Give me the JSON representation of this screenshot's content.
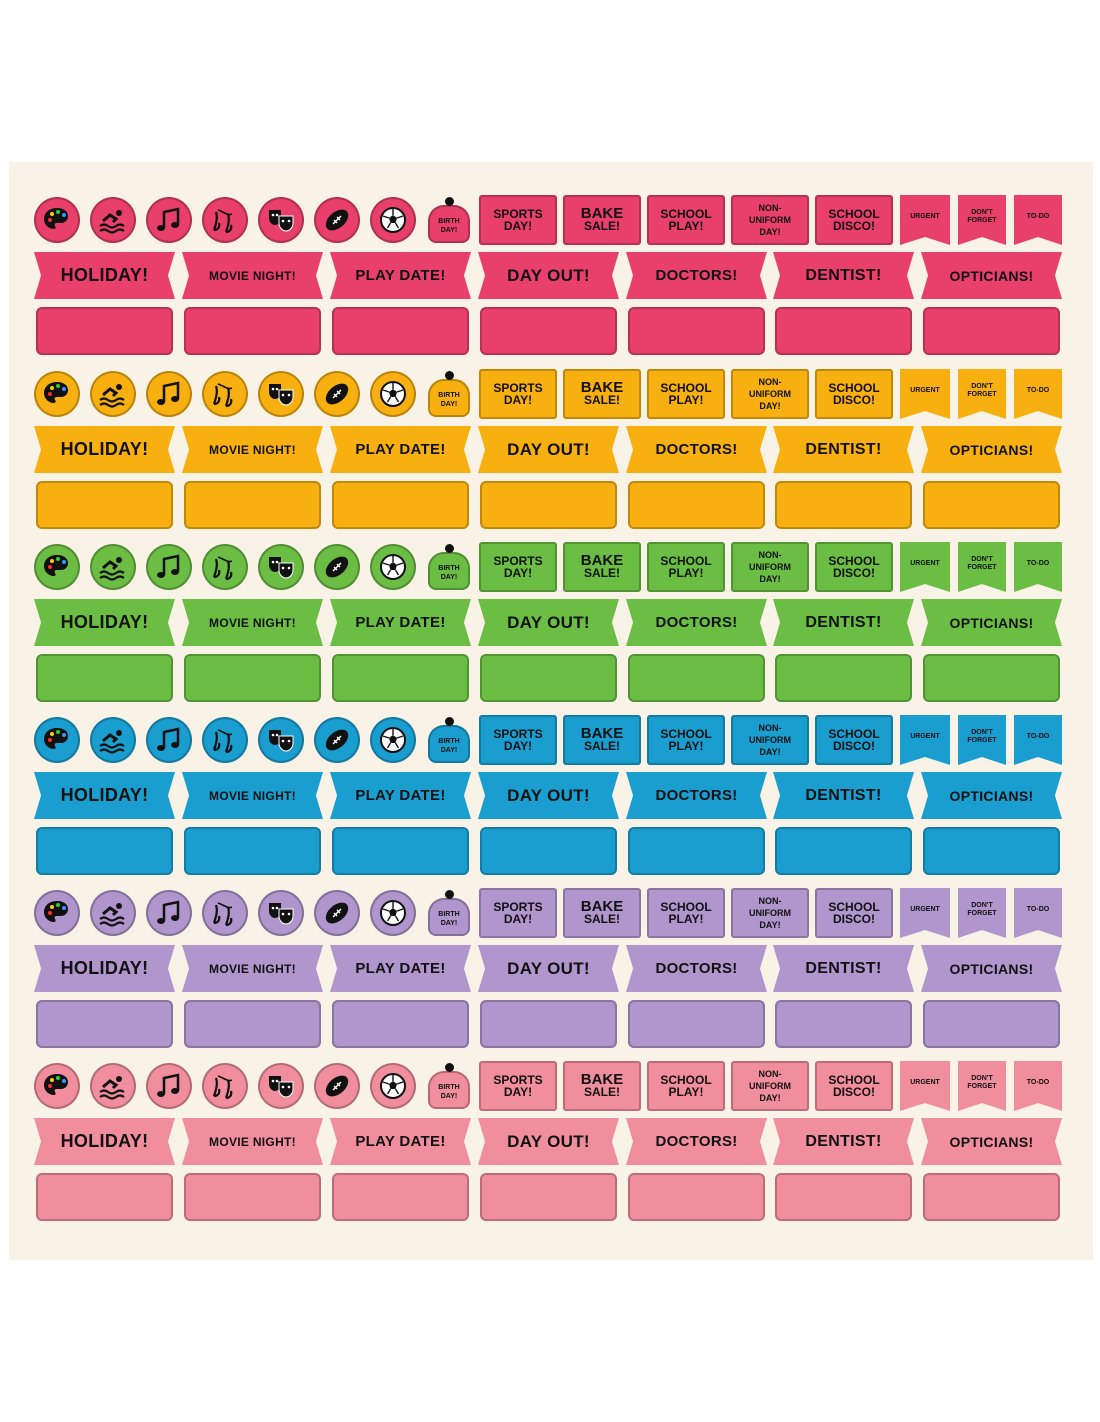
{
  "icons": [
    "palette-icon",
    "swimmer-icon",
    "music-note-icon",
    "ballet-shoes-icon",
    "theatre-masks-icon",
    "football-icon",
    "soccer-ball-icon"
  ],
  "birthday": {
    "line1": "BIRTH",
    "line2": "DAY!"
  },
  "labels": [
    {
      "line1": "SPORTS",
      "line2": "DAY!"
    },
    {
      "line1": "BAKE",
      "line2": "SALE!"
    },
    {
      "line1": "SCHOOL",
      "line2": "PLAY!"
    },
    {
      "line1": "NON-",
      "line2": "UNIFORM",
      "line3": "DAY!"
    },
    {
      "line1": "SCHOOL",
      "line2": "DISCO!"
    }
  ],
  "flags": [
    {
      "line1": "URGENT"
    },
    {
      "line1": "DON'T",
      "line2": "FORGET"
    },
    {
      "line1": "TO-DO"
    }
  ],
  "banners": [
    "HOLIDAY!",
    "MOVIE NIGHT!",
    "PLAY DATE!",
    "DAY OUT!",
    "DOCTORS!",
    "DENTIST!",
    "OPTICIANS!"
  ],
  "colors": [
    "#e8406a",
    "#f7b00f",
    "#6bbd44",
    "#1a9ed0",
    "#b195cd",
    "#f08e9d"
  ]
}
